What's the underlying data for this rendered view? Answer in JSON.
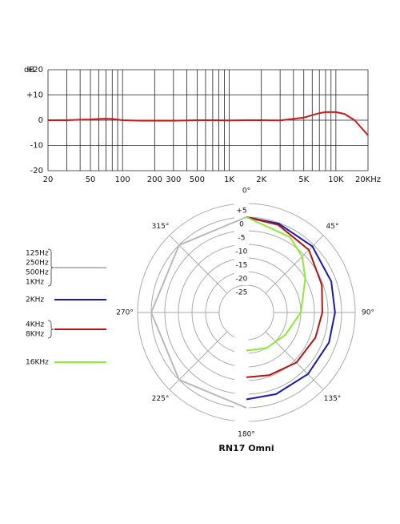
{
  "chart_data": [
    {
      "type": "line",
      "ylabel": "dB",
      "log_x": true,
      "x": [
        20,
        30,
        40,
        50,
        60,
        70,
        80,
        100,
        150,
        200,
        300,
        500,
        700,
        1000,
        1500,
        2000,
        3000,
        4000,
        5000,
        6000,
        7000,
        8000,
        10000,
        12000,
        15000,
        20000
      ],
      "series": [
        {
          "color": "#cc1a1a",
          "values": [
            0,
            0,
            0.2,
            0.3,
            0.5,
            0.6,
            0.5,
            0,
            -0.2,
            -0.2,
            -0.2,
            0,
            0,
            -0.1,
            0,
            0,
            -0.1,
            0.5,
            1,
            2,
            2.8,
            3.2,
            3.2,
            2.5,
            0,
            -6
          ]
        }
      ],
      "xlim": [
        20,
        20000
      ],
      "xticks": [
        20,
        50,
        100,
        200,
        300,
        500,
        {
          "value": 1000,
          "label": "1K"
        },
        {
          "value": 2000,
          "label": "2K"
        },
        {
          "value": 5000,
          "label": "5K"
        },
        {
          "value": 10000,
          "label": "10K"
        },
        {
          "value": 20000,
          "label": "20KHz"
        }
      ],
      "xminor": [
        30,
        40,
        60,
        70,
        80,
        90,
        400,
        600,
        700,
        800,
        900,
        3000,
        4000,
        6000,
        7000,
        8000,
        9000
      ],
      "ylim": [
        -20,
        20
      ],
      "yticks": [
        -20,
        -10,
        0,
        {
          "value": 10,
          "label": "+10"
        },
        {
          "value": 20,
          "label": "+20"
        }
      ],
      "grid": true
    },
    {
      "type": "polar",
      "title": "RN17 Omni",
      "rlim": [
        -35,
        5
      ],
      "rticks": [
        -25,
        -20,
        -15,
        -10,
        -5,
        0,
        {
          "value": 5,
          "label": "+5"
        }
      ],
      "thetaticks": [
        {
          "value": 0,
          "label": "0°"
        },
        {
          "value": 45,
          "label": "45°"
        },
        {
          "value": 90,
          "label": "90°"
        },
        {
          "value": 135,
          "label": "135°"
        },
        {
          "value": 180,
          "label": "180°"
        },
        {
          "value": 225,
          "label": "225°"
        },
        {
          "value": 270,
          "label": "270°"
        },
        {
          "value": 315,
          "label": "315°"
        }
      ],
      "series": [
        {
          "names": [
            "125Hz",
            "250Hz",
            "500Hz",
            "1KHz"
          ],
          "color": "#b8b8b8",
          "angles": [
            180,
            225,
            270,
            315,
            360
          ],
          "values": [
            0,
            0,
            0,
            0,
            0
          ]
        },
        {
          "names": [
            "2KHz"
          ],
          "color": "#1a1aa8",
          "angles": [
            0,
            20,
            45,
            70,
            90,
            110,
            135,
            160,
            180
          ],
          "values": [
            0,
            -0.3,
            -0.7,
            -1.8,
            -2.4,
            -2.7,
            -3,
            -3.1,
            -3.1
          ]
        },
        {
          "names": [
            "4KHz",
            "8KHz"
          ],
          "color": "#b01515",
          "angles": [
            0,
            20,
            45,
            70,
            90,
            110,
            135,
            160,
            180
          ],
          "values": [
            0,
            -0.8,
            -2.5,
            -5.5,
            -7.1,
            -8,
            -9,
            -10.5,
            -11.2
          ]
        },
        {
          "names": [
            "16KHz"
          ],
          "color": "#8ee83a",
          "angles": [
            0,
            30,
            45,
            60,
            90,
            120,
            150,
            180
          ],
          "values": [
            0,
            -3,
            -6,
            -10,
            -15,
            -18.5,
            -20,
            -21
          ]
        }
      ]
    }
  ]
}
